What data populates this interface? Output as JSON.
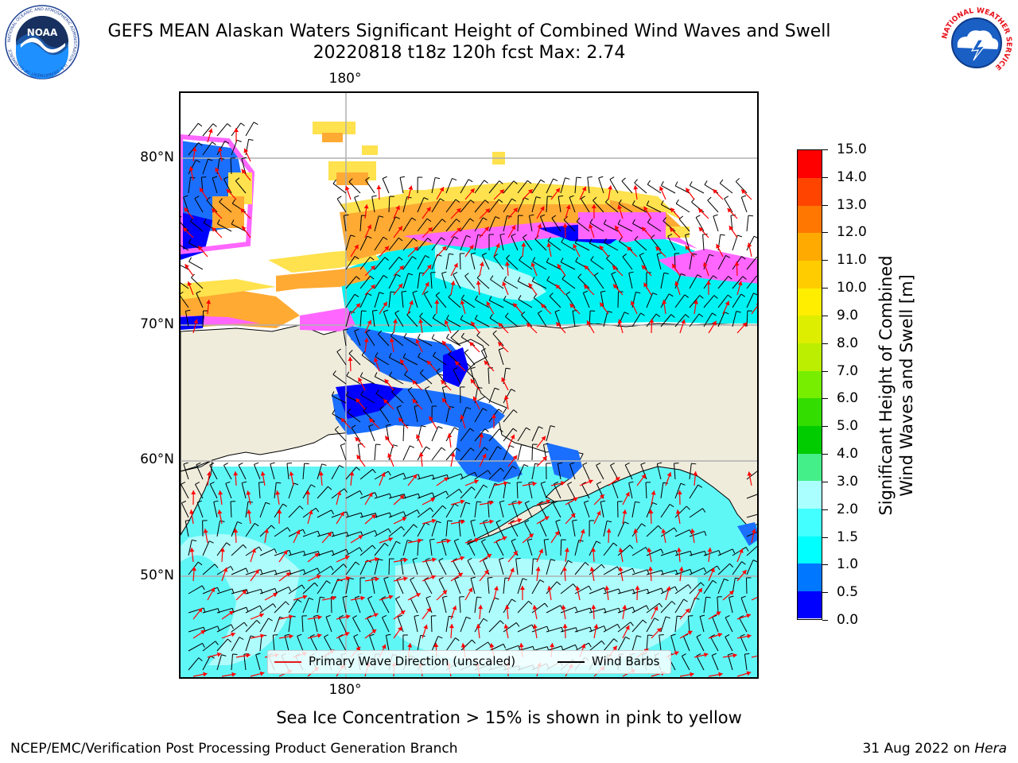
{
  "header": {
    "title_line1": "GEFS MEAN Alaskan Waters Significant Height of Combined Wind Waves and Swell",
    "title_line2": "20220818 t18z 120h fcst   Max: 2.74"
  },
  "logos": {
    "left": {
      "icon": "noaa-logo",
      "text": "NOAA",
      "ring_text": "NATIONAL OCEANIC AND ATMOSPHERIC ADMINISTRATION · U.S. DEPARTMENT OF COMMERCE"
    },
    "right": {
      "icon": "nws-logo",
      "ring_text": "NATIONAL WEATHER SERVICE"
    }
  },
  "map": {
    "lon_label_top": "180°",
    "lon_label_bottom": "180°",
    "lat_labels": [
      "80°N",
      "70°N",
      "60°N",
      "50°N"
    ],
    "colors": {
      "land": "#efecdc",
      "ice_pink": "#ff66ff",
      "ice_orange": "#ffaa33",
      "ice_yellow": "#ffe24d",
      "wave_direction": "#ff0000",
      "wind_barb": "#000000",
      "grid": "#b0b0b0"
    }
  },
  "legend": {
    "items": [
      {
        "label": "Primary Wave Direction (unscaled)",
        "color": "#e31a1c"
      },
      {
        "label": "Wind Barbs",
        "color": "#000000"
      }
    ]
  },
  "colorbar": {
    "label_line1": "Significant Height of Combined",
    "label_line2": "Wind Waves and Swell [m]",
    "ticks": [
      "0.0",
      "0.5",
      "1.0",
      "1.5",
      "2.0",
      "3.0",
      "4.0",
      "5.0",
      "6.0",
      "7.0",
      "8.0",
      "9.0",
      "10.0",
      "11.0",
      "12.0",
      "13.0",
      "14.0",
      "15.0"
    ],
    "colors": [
      "#0000ff",
      "#0077ff",
      "#00ffff",
      "#44ffff",
      "#aaffff",
      "#44ee88",
      "#00cc00",
      "#33dd00",
      "#77ee00",
      "#bbee00",
      "#ddee00",
      "#ffee00",
      "#ffcc00",
      "#ffaa00",
      "#ff7700",
      "#ff4400",
      "#ff0000"
    ]
  },
  "notes": {
    "sea_ice": "Sea Ice Concentration > 15% is shown in pink to yellow"
  },
  "footer": {
    "left": "NCEP/EMC/Verification Post Processing Product Generation Branch",
    "right_prefix": "31 Aug 2022 on ",
    "right_machine": "Hera"
  }
}
